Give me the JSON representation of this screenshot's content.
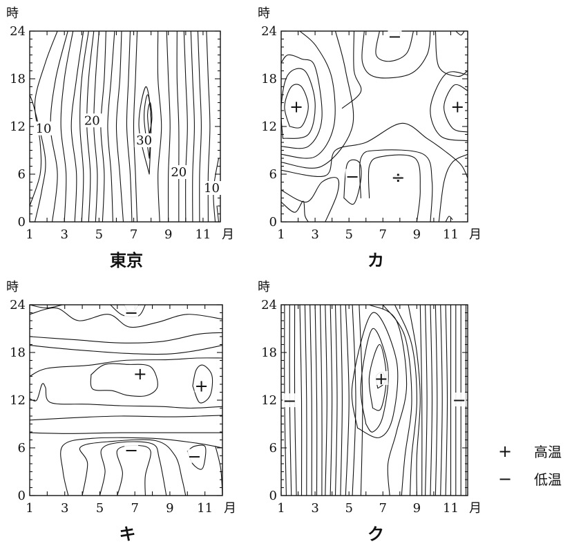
{
  "chart_data": [
    {
      "type": "contour",
      "title": "東京",
      "ylabel": "時",
      "xlabel": "月",
      "x_ticks": [
        "1",
        "3",
        "5",
        "7",
        "9",
        "11"
      ],
      "y_ticks": [
        "0",
        "6",
        "12",
        "18",
        "24"
      ],
      "xlim": [
        1,
        12
      ],
      "ylim": [
        0,
        24
      ],
      "contour_labels": [
        {
          "text": "10",
          "x": 1.8,
          "y": 11.5
        },
        {
          "text": "20",
          "x": 4.6,
          "y": 12.5
        },
        {
          "text": "30",
          "x": 7.6,
          "y": 10.0
        },
        {
          "text": "20",
          "x": 9.6,
          "y": 6.0
        },
        {
          "text": "10",
          "x": 11.5,
          "y": 4.0
        }
      ],
      "markers": []
    },
    {
      "type": "contour",
      "title": "カ",
      "ylabel": "時",
      "xlabel": "月",
      "x_ticks": [
        "1",
        "3",
        "5",
        "7",
        "9",
        "11"
      ],
      "y_ticks": [
        "0",
        "6",
        "12",
        "18",
        "24"
      ],
      "xlim": [
        1,
        12
      ],
      "ylim": [
        0,
        24
      ],
      "contour_labels": [],
      "markers": [
        {
          "symbol": "+",
          "x": 1.9,
          "y": 14.5
        },
        {
          "symbol": "+",
          "x": 11.4,
          "y": 14.5
        },
        {
          "symbol": "−",
          "x": 5.2,
          "y": 5.7
        },
        {
          "symbol": "−",
          "x": 7.7,
          "y": 23.3
        },
        {
          "symbol": "÷",
          "x": 7.9,
          "y": 5.6
        }
      ]
    },
    {
      "type": "contour",
      "title": "キ",
      "ylabel": "時",
      "xlabel": "月",
      "x_ticks": [
        "1",
        "3",
        "5",
        "7",
        "9",
        "11"
      ],
      "y_ticks": [
        "0",
        "6",
        "12",
        "18",
        "24"
      ],
      "xlim": [
        1,
        12
      ],
      "ylim": [
        0,
        24
      ],
      "contour_labels": [],
      "markers": [
        {
          "symbol": "+",
          "x": 7.3,
          "y": 15.3
        },
        {
          "symbol": "+",
          "x": 10.8,
          "y": 13.8
        },
        {
          "symbol": "−",
          "x": 6.8,
          "y": 23.0
        },
        {
          "symbol": "−",
          "x": 6.8,
          "y": 5.7
        },
        {
          "symbol": "−",
          "x": 10.4,
          "y": 4.9
        }
      ]
    },
    {
      "type": "contour",
      "title": "ク",
      "ylabel": "時",
      "xlabel": "月",
      "x_ticks": [
        "1",
        "3",
        "5",
        "7",
        "9",
        "11"
      ],
      "y_ticks": [
        "0",
        "6",
        "12",
        "18",
        "24"
      ],
      "xlim": [
        1,
        12
      ],
      "ylim": [
        0,
        24
      ],
      "contour_labels": [],
      "markers": [
        {
          "symbol": "+",
          "x": 6.9,
          "y": 14.7
        },
        {
          "symbol": "−",
          "x": 1.5,
          "y": 11.9
        },
        {
          "symbol": "−",
          "x": 11.5,
          "y": 12.0
        }
      ]
    }
  ],
  "legend": [
    {
      "symbol": "+",
      "label": "高温"
    },
    {
      "symbol": "−",
      "label": "低温"
    }
  ]
}
